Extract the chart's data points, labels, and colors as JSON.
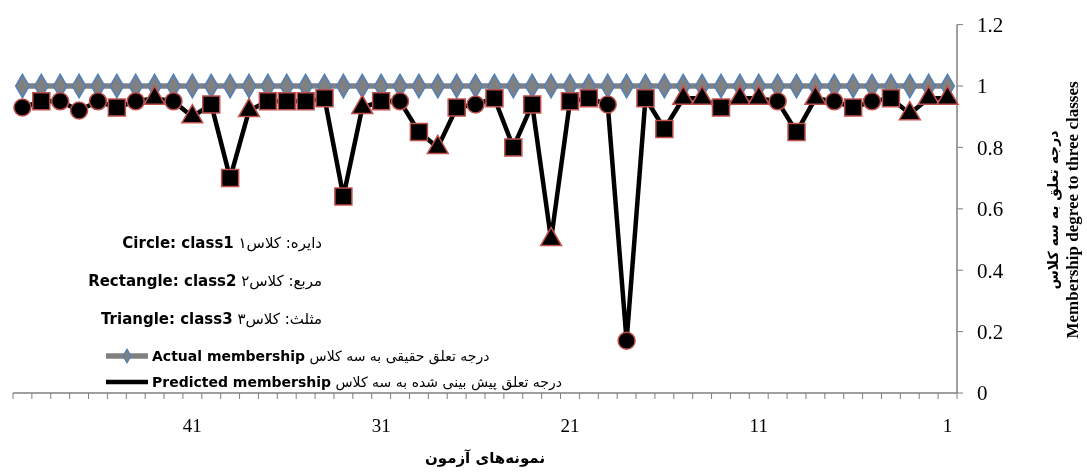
{
  "chart_data": {
    "type": "line",
    "xlabel": "نمونه‌های آزمون",
    "ylabel": "درجه تعلق به سه کلاس\nMembership degree to three classes",
    "categories": [
      null,
      null,
      null,
      null,
      null,
      null,
      null,
      null,
      null,
      "41",
      null,
      null,
      null,
      null,
      null,
      null,
      null,
      null,
      null,
      "31",
      null,
      null,
      null,
      null,
      null,
      null,
      null,
      null,
      null,
      "21",
      null,
      null,
      null,
      null,
      null,
      null,
      null,
      null,
      null,
      "11",
      null,
      null,
      null,
      null,
      null,
      null,
      null,
      null,
      null,
      "1"
    ],
    "series": [
      {
        "name": "Actual membership درجه تعلق حقیقی به سه کلاس",
        "color": "#808080",
        "marker": "diamond",
        "values": [
          1,
          1,
          1,
          1,
          1,
          1,
          1,
          1,
          1,
          1,
          1,
          1,
          1,
          1,
          1,
          1,
          1,
          1,
          1,
          1,
          1,
          1,
          1,
          1,
          1,
          1,
          1,
          1,
          1,
          1,
          1,
          1,
          1,
          1,
          1,
          1,
          1,
          1,
          1,
          1,
          1,
          1,
          1,
          1,
          1,
          1,
          1,
          1,
          1,
          1
        ]
      },
      {
        "name": "Predicted membership درجه تعلق پیش بینی شده به سه کلاس",
        "color": "#000000",
        "values": [
          0.93,
          0.95,
          0.95,
          0.92,
          0.95,
          0.93,
          0.95,
          0.96,
          0.95,
          0.9,
          0.94,
          0.7,
          0.92,
          0.95,
          0.95,
          0.95,
          0.96,
          0.64,
          0.93,
          0.95,
          0.95,
          0.85,
          0.8,
          0.93,
          0.94,
          0.96,
          0.8,
          0.94,
          0.5,
          0.95,
          0.96,
          0.94,
          0.17,
          0.96,
          0.86,
          0.96,
          0.96,
          0.93,
          0.96,
          0.96,
          0.95,
          0.85,
          0.96,
          0.95,
          0.93,
          0.95,
          0.96,
          0.91,
          0.96,
          0.96
        ]
      },
      {
        "type": "scatter",
        "color": "#000000",
        "marker": "circle",
        "values": [
          0.93,
          null,
          0.95,
          0.92,
          0.95,
          null,
          0.95,
          null,
          0.95,
          null,
          null,
          null,
          null,
          null,
          null,
          null,
          null,
          null,
          null,
          null,
          0.95,
          null,
          null,
          null,
          0.94,
          null,
          null,
          null,
          null,
          null,
          null,
          0.94,
          0.17,
          null,
          null,
          null,
          null,
          null,
          null,
          null,
          0.95,
          null,
          null,
          0.95,
          null,
          0.95,
          null,
          null,
          null,
          null
        ]
      },
      {
        "type": "scatter",
        "color": "#000000",
        "marker": "square",
        "values": [
          null,
          0.95,
          null,
          null,
          null,
          0.93,
          null,
          null,
          null,
          null,
          0.94,
          0.7,
          null,
          0.95,
          0.95,
          0.95,
          0.96,
          0.64,
          null,
          0.95,
          null,
          0.85,
          null,
          0.93,
          null,
          0.96,
          0.8,
          0.94,
          null,
          0.95,
          0.96,
          null,
          null,
          0.96,
          0.86,
          null,
          null,
          0.93,
          null,
          null,
          null,
          0.85,
          null,
          null,
          0.93,
          null,
          0.96,
          null,
          null,
          null
        ]
      },
      {
        "type": "scatter",
        "color": "#000000",
        "marker": "triangle",
        "values": [
          null,
          null,
          null,
          null,
          null,
          null,
          null,
          0.96,
          null,
          0.9,
          null,
          null,
          0.92,
          null,
          null,
          null,
          null,
          null,
          0.93,
          null,
          null,
          null,
          0.8,
          null,
          null,
          null,
          null,
          null,
          0.5,
          null,
          null,
          null,
          null,
          null,
          null,
          0.96,
          0.96,
          null,
          0.96,
          0.96,
          null,
          null,
          0.96,
          null,
          null,
          null,
          null,
          0.91,
          0.96,
          0.96
        ]
      }
    ],
    "ylim": [
      0,
      1.2
    ],
    "yticks": [
      0,
      0.2,
      0.4,
      0.6,
      0.8,
      1,
      1.2
    ],
    "legend": "bottom left",
    "annotations": [
      "دایره: کلاس۱ Circle: class1",
      "مربع: کلاس۲ Rectangle: class2",
      "مثلث: کلاس۳ Triangle: class3"
    ]
  }
}
